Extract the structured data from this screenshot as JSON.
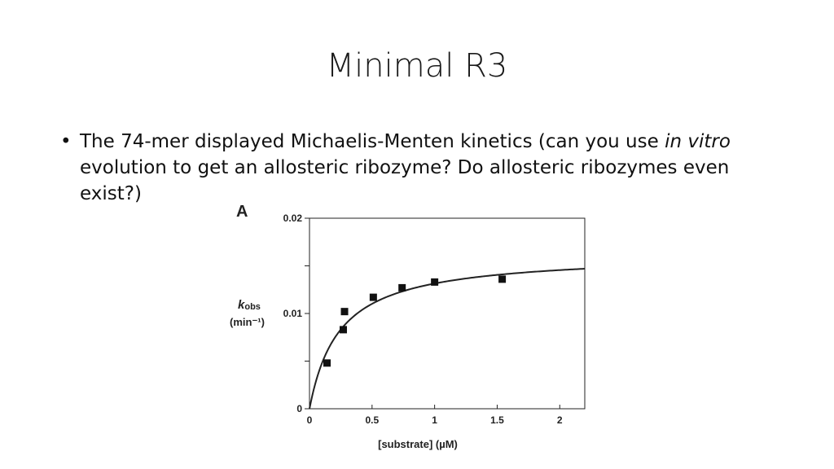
{
  "slide": {
    "title": "Minimal R3",
    "bullet": {
      "symbol": "•",
      "before_italic": "The 74-mer displayed Michaelis-Menten kinetics (can you use ",
      "italic": "in vitro",
      "after_italic": " evolution to get an allosteric ribozyme?  Do allosteric ribozymes even exist?)"
    }
  },
  "chart_data": {
    "type": "scatter",
    "panel_label": "A",
    "xlabel": "[substrate]  (µM)",
    "ylabel_main": "k",
    "ylabel_sub": "obs",
    "ylabel_unit": "(min⁻¹)",
    "xlim": [
      0,
      2.2
    ],
    "ylim": [
      0,
      0.02
    ],
    "x_ticks": [
      {
        "value": 0,
        "label": "0"
      },
      {
        "value": 0.5,
        "label": "0.5"
      },
      {
        "value": 1,
        "label": "1"
      },
      {
        "value": 1.5,
        "label": "1.5"
      },
      {
        "value": 2,
        "label": "2"
      }
    ],
    "y_ticks": [
      {
        "value": 0,
        "label": "0"
      },
      {
        "value": 0.005,
        "label": ""
      },
      {
        "value": 0.01,
        "label": "0.01"
      },
      {
        "value": 0.015,
        "label": ""
      },
      {
        "value": 0.02,
        "label": "0.02"
      }
    ],
    "grid": false,
    "points": [
      {
        "x": 0.14,
        "y": 0.0048
      },
      {
        "x": 0.27,
        "y": 0.0083
      },
      {
        "x": 0.28,
        "y": 0.0102
      },
      {
        "x": 0.51,
        "y": 0.0117
      },
      {
        "x": 0.74,
        "y": 0.0127
      },
      {
        "x": 1.0,
        "y": 0.0133
      },
      {
        "x": 1.54,
        "y": 0.0136
      }
    ],
    "fit": {
      "model": "Michaelis-Menten",
      "vmax": 0.0163,
      "km": 0.24
    },
    "colors": {
      "marker": "#111111",
      "line": "#222222",
      "axis": "#222222"
    }
  }
}
